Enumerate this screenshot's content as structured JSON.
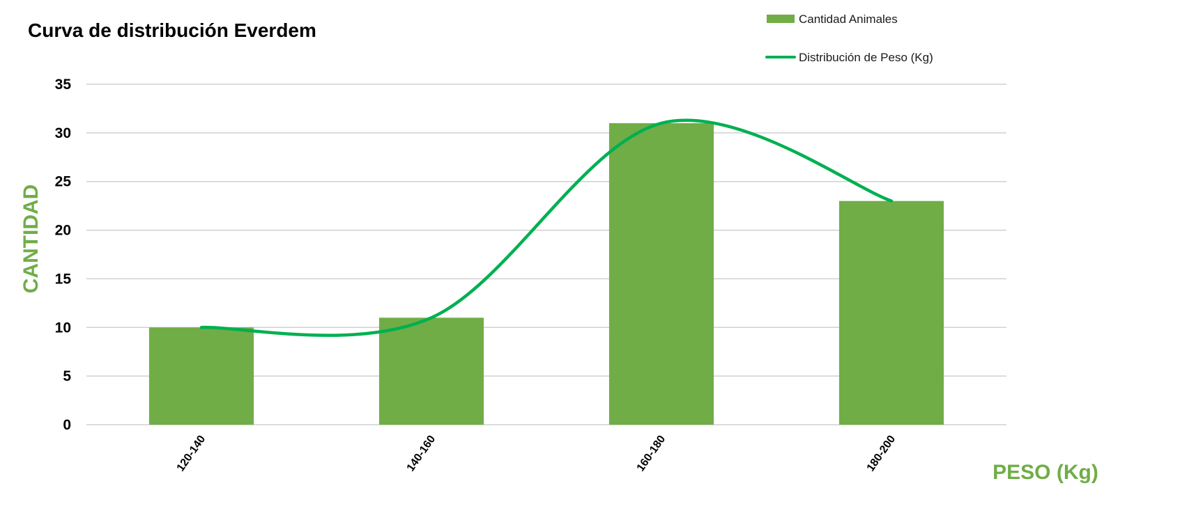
{
  "chart_data": {
    "type": "bar",
    "title": "Curva de distribución Everdem",
    "xlabel": "PESO (Kg)",
    "ylabel": "CANTIDAD",
    "categories": [
      "120-140",
      "140-160",
      "160-180",
      "180-200"
    ],
    "series": [
      {
        "name": "Cantidad Animales",
        "type": "bar",
        "values": [
          10,
          11,
          31,
          23
        ]
      },
      {
        "name": "Distribución de Peso (Kg)",
        "type": "line",
        "smooth": true,
        "values": [
          10,
          11,
          31,
          23
        ]
      }
    ],
    "ylim": [
      0,
      35
    ],
    "yticks": [
      0,
      5,
      10,
      15,
      20,
      25,
      30,
      35
    ],
    "grid": true,
    "legend_position": "top-right"
  },
  "colors": {
    "bar": "#70ad47",
    "line": "#00b050",
    "axis_title": "#70ad47",
    "grid": "#d0d0d0"
  }
}
